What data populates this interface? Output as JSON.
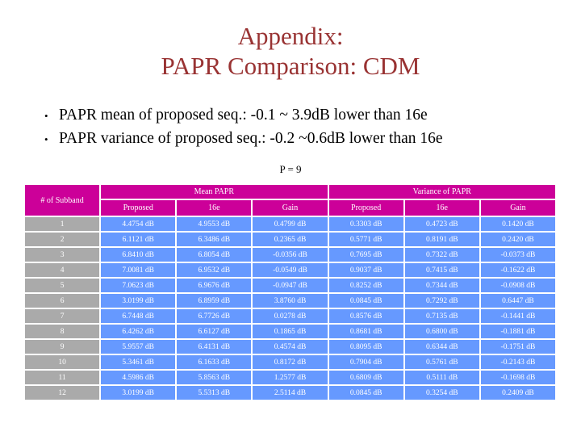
{
  "title": {
    "line1": "Appendix:",
    "line2": "PAPR Comparison: CDM",
    "color": "#993333"
  },
  "bullets": [
    {
      "marker": "•",
      "text": "PAPR mean of proposed seq.: -0.1 ~ 3.9dB lower than 16e"
    },
    {
      "marker": "•",
      "text": "PAPR variance of proposed seq.: -0.2 ~0.6dB lower than 16e"
    }
  ],
  "parameter_label": "P = 9",
  "table": {
    "corner_header": "# of Subband",
    "group_headers": [
      "Mean PAPR",
      "Variance of PAPR"
    ],
    "sub_headers": [
      "Proposed",
      "16e",
      "Gain",
      "Proposed",
      "16e",
      "Gain"
    ],
    "colors": {
      "header_bg": "#CC0099",
      "row_label_bg": "#AAAAAA",
      "cell_bg": "#6699FF",
      "cell_text": "#FFFFFF",
      "grid_gap": "#FFFFFF"
    },
    "rows": [
      {
        "subband": "1",
        "values": [
          "4.4754 dB",
          "4.9553 dB",
          "0.4799 dB",
          "0.3303 dB",
          "0.4723 dB",
          "0.1420 dB"
        ]
      },
      {
        "subband": "2",
        "values": [
          "6.1121 dB",
          "6.3486 dB",
          "0.2365 dB",
          "0.5771 dB",
          "0.8191 dB",
          "0.2420 dB"
        ]
      },
      {
        "subband": "3",
        "values": [
          "6.8410 dB",
          "6.8054 dB",
          "-0.0356 dB",
          "0.7695 dB",
          "0.7322 dB",
          "-0.0373 dB"
        ]
      },
      {
        "subband": "4",
        "values": [
          "7.0081 dB",
          "6.9532 dB",
          "-0.0549 dB",
          "0.9037 dB",
          "0.7415 dB",
          "-0.1622 dB"
        ]
      },
      {
        "subband": "5",
        "values": [
          "7.0623 dB",
          "6.9676 dB",
          "-0.0947 dB",
          "0.8252 dB",
          "0.7344 dB",
          "-0.0908 dB"
        ]
      },
      {
        "subband": "6",
        "values": [
          "3.0199 dB",
          "6.8959 dB",
          "3.8760 dB",
          "0.0845 dB",
          "0.7292 dB",
          "0.6447 dB"
        ]
      },
      {
        "subband": "7",
        "values": [
          "6.7448 dB",
          "6.7726 dB",
          "0.0278 dB",
          "0.8576 dB",
          "0.7135 dB",
          "-0.1441 dB"
        ]
      },
      {
        "subband": "8",
        "values": [
          "6.4262 dB",
          "6.6127 dB",
          "0.1865 dB",
          "0.8681 dB",
          "0.6800 dB",
          "-0.1881 dB"
        ]
      },
      {
        "subband": "9",
        "values": [
          "5.9557 dB",
          "6.4131 dB",
          "0.4574 dB",
          "0.8095 dB",
          "0.6344 dB",
          "-0.1751 dB"
        ]
      },
      {
        "subband": "10",
        "values": [
          "5.3461 dB",
          "6.1633 dB",
          "0.8172 dB",
          "0.7904 dB",
          "0.5761 dB",
          "-0.2143 dB"
        ]
      },
      {
        "subband": "11",
        "values": [
          "4.5986 dB",
          "5.8563 dB",
          "1.2577 dB",
          "0.6809 dB",
          "0.5111 dB",
          "-0.1698 dB"
        ]
      },
      {
        "subband": "12",
        "values": [
          "3.0199 dB",
          "5.5313 dB",
          "2.5114 dB",
          "0.0845 dB",
          "0.3254 dB",
          "0.2409 dB"
        ]
      }
    ]
  }
}
